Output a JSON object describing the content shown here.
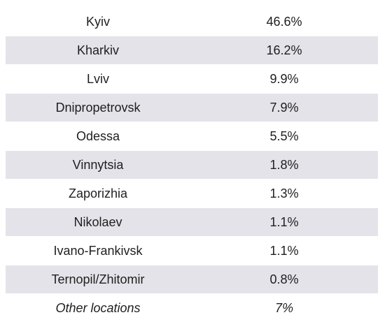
{
  "chart_data": {
    "type": "table",
    "columns": [
      "",
      ""
    ],
    "rows": [
      {
        "city": "Kyiv",
        "share": "46.6%",
        "value": 46.6
      },
      {
        "city": "Kharkiv",
        "share": "16.2%",
        "value": 16.2
      },
      {
        "city": "Lviv",
        "share": "9.9%",
        "value": 9.9
      },
      {
        "city": "Dnipropetrovsk",
        "share": "7.9%",
        "value": 7.9
      },
      {
        "city": "Odessa",
        "share": "5.5%",
        "value": 5.5
      },
      {
        "city": "Vinnytsia",
        "share": "1.8%",
        "value": 1.8
      },
      {
        "city": "Zaporizhia",
        "share": "1.3%",
        "value": 1.3
      },
      {
        "city": "Nikolaev",
        "share": "1.1%",
        "value": 1.1
      },
      {
        "city": "Ivano-Frankivsk",
        "share": "1.1%",
        "value": 1.1
      },
      {
        "city": "Ternopil/Zhitomir",
        "share": "0.8%",
        "value": 0.8
      },
      {
        "city": "Other locations",
        "share": "7%",
        "value": 7,
        "italic": true
      }
    ],
    "colors": {
      "shaded_row": "#e3e3e9",
      "plain_row": "#ffffff",
      "text": "#1f1f1f"
    },
    "striping": "alternate rows shaded, starting with second row"
  }
}
